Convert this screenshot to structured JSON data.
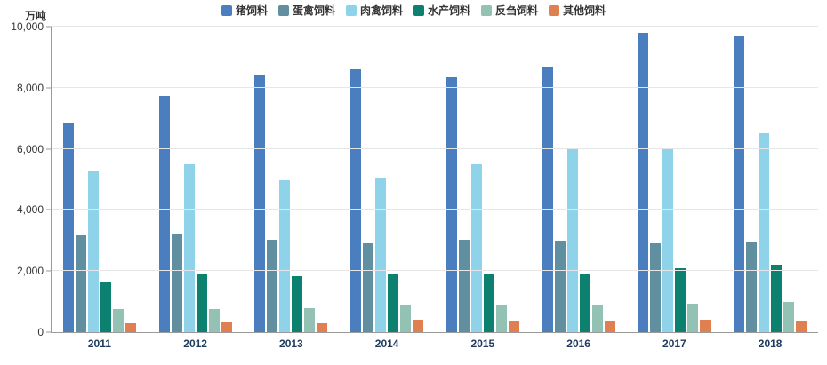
{
  "chart_data": {
    "type": "bar",
    "title": "",
    "unit_label": "万吨",
    "categories": [
      "2011",
      "2012",
      "2013",
      "2014",
      "2015",
      "2016",
      "2017",
      "2018"
    ],
    "series": [
      {
        "name": "猪饲料",
        "color": "#4a7ebf",
        "values": [
          6850,
          7720,
          8400,
          8600,
          8350,
          8700,
          9810,
          9720
        ]
      },
      {
        "name": "蛋禽饲料",
        "color": "#60909f",
        "values": [
          3160,
          3220,
          3010,
          2900,
          3010,
          3000,
          2910,
          2960
        ]
      },
      {
        "name": "肉禽饲料",
        "color": "#8fd3ea",
        "values": [
          5300,
          5500,
          4980,
          5050,
          5500,
          6000,
          6000,
          6510
        ]
      },
      {
        "name": "水产饲料",
        "color": "#0c8170",
        "values": [
          1650,
          1880,
          1840,
          1890,
          1880,
          1900,
          2080,
          2200
        ]
      },
      {
        "name": "反刍饲料",
        "color": "#93c2b4",
        "values": [
          760,
          760,
          790,
          870,
          880,
          880,
          930,
          1000
        ]
      },
      {
        "name": "其他饲料",
        "color": "#e07f4f",
        "values": [
          300,
          310,
          280,
          400,
          360,
          380,
          400,
          350
        ]
      }
    ],
    "ylim": [
      0,
      10000
    ],
    "ytick_step": 2000,
    "ytick_labels": [
      "0",
      "2,000",
      "4,000",
      "6,000",
      "8,000",
      "10,000"
    ],
    "grid": true,
    "legend_position": "top",
    "axis_color": "#9a9a9a",
    "gridline_color": "#e6e6e6",
    "x_label_color": "#1e3a5c"
  }
}
